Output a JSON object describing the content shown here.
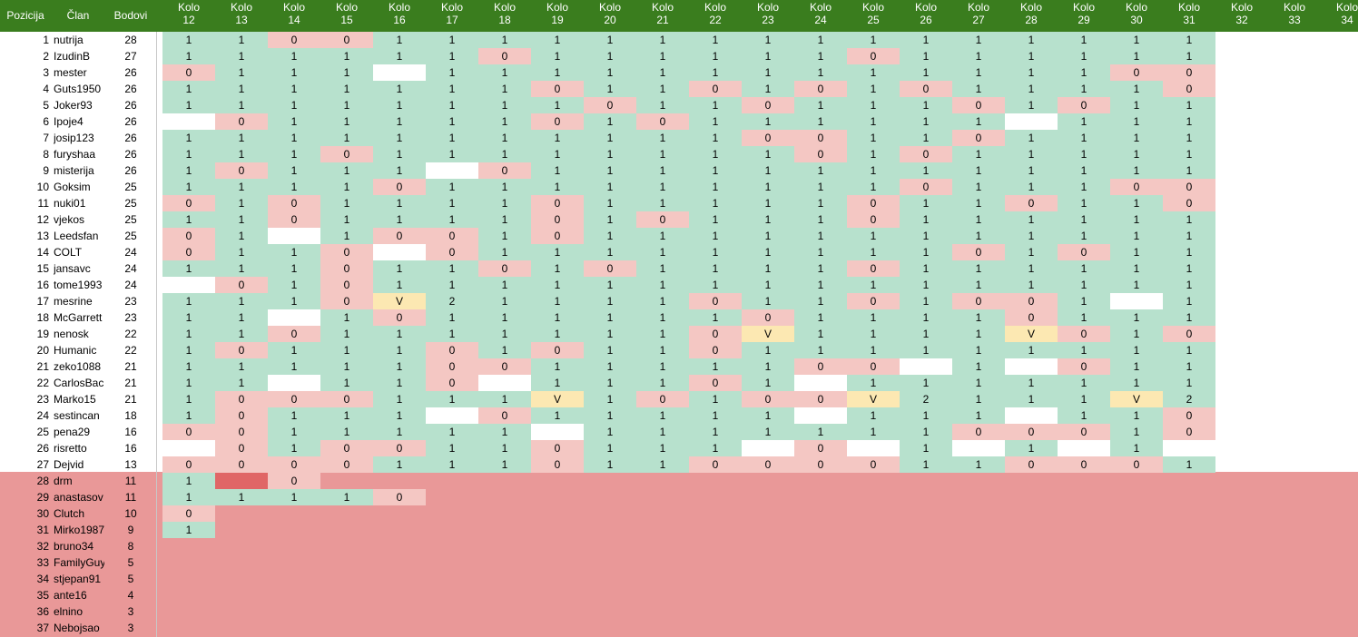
{
  "header": {
    "pozicija": "Pozicija",
    "clan": "Član",
    "bodovi": "Bodovi"
  },
  "rounds": [
    {
      "kolo": "Kolo",
      "num": "12"
    },
    {
      "kolo": "Kolo",
      "num": "13"
    },
    {
      "kolo": "Kolo",
      "num": "14"
    },
    {
      "kolo": "Kolo",
      "num": "15"
    },
    {
      "kolo": "Kolo",
      "num": "16"
    },
    {
      "kolo": "Kolo",
      "num": "17"
    },
    {
      "kolo": "Kolo",
      "num": "18"
    },
    {
      "kolo": "Kolo",
      "num": "19"
    },
    {
      "kolo": "Kolo",
      "num": "20"
    },
    {
      "kolo": "Kolo",
      "num": "21"
    },
    {
      "kolo": "Kolo",
      "num": "22"
    },
    {
      "kolo": "Kolo",
      "num": "23"
    },
    {
      "kolo": "Kolo",
      "num": "24"
    },
    {
      "kolo": "Kolo",
      "num": "25"
    },
    {
      "kolo": "Kolo",
      "num": "26"
    },
    {
      "kolo": "Kolo",
      "num": "27"
    },
    {
      "kolo": "Kolo",
      "num": "28"
    },
    {
      "kolo": "Kolo",
      "num": "29"
    },
    {
      "kolo": "Kolo",
      "num": "30"
    },
    {
      "kolo": "Kolo",
      "num": "31"
    },
    {
      "kolo": "Kolo",
      "num": "32"
    },
    {
      "kolo": "Kolo",
      "num": "33"
    },
    {
      "kolo": "Kolo",
      "num": "34"
    }
  ],
  "colors": {
    "header": "#3a7d1e",
    "ok": "#b7e1cd",
    "miss": "#f4c7c3",
    "vip": "#fce8b2",
    "relegation": "#e99898"
  },
  "rows": [
    {
      "pos": "1",
      "name": "nutrija",
      "pts": "28",
      "cells": [
        "1",
        "1",
        "0",
        "0",
        "1",
        "1",
        "1",
        "1",
        "1",
        "1",
        "1",
        "1",
        "1",
        "1",
        "1",
        "1",
        "1",
        "1",
        "1",
        "1"
      ]
    },
    {
      "pos": "2",
      "name": "IzudinB",
      "pts": "27",
      "cells": [
        "1",
        "1",
        "1",
        "1",
        "1",
        "1",
        "0",
        "1",
        "1",
        "1",
        "1",
        "1",
        "1",
        "0",
        "1",
        "1",
        "1",
        "1",
        "1",
        "1"
      ]
    },
    {
      "pos": "3",
      "name": "mester",
      "pts": "26",
      "cells": [
        "0",
        "1",
        "1",
        "1",
        "",
        "1",
        "1",
        "1",
        "1",
        "1",
        "1",
        "1",
        "1",
        "1",
        "1",
        "1",
        "1",
        "1",
        "0",
        "0"
      ]
    },
    {
      "pos": "4",
      "name": "Guts1950",
      "pts": "26",
      "cells": [
        "1",
        "1",
        "1",
        "1",
        "1",
        "1",
        "1",
        "0",
        "1",
        "1",
        "0",
        "1",
        "0",
        "1",
        "0",
        "1",
        "1",
        "1",
        "1",
        "0"
      ]
    },
    {
      "pos": "5",
      "name": "Joker93",
      "pts": "26",
      "cells": [
        "1",
        "1",
        "1",
        "1",
        "1",
        "1",
        "1",
        "1",
        "0",
        "1",
        "1",
        "0",
        "1",
        "1",
        "1",
        "0",
        "1",
        "0",
        "1",
        "1"
      ]
    },
    {
      "pos": "6",
      "name": "Ipoje4",
      "pts": "26",
      "cells": [
        "",
        "0",
        "1",
        "1",
        "1",
        "1",
        "1",
        "0",
        "1",
        "0",
        "1",
        "1",
        "1",
        "1",
        "1",
        "1",
        "",
        "1",
        "1",
        "1"
      ]
    },
    {
      "pos": "7",
      "name": "josip123",
      "pts": "26",
      "cells": [
        "1",
        "1",
        "1",
        "1",
        "1",
        "1",
        "1",
        "1",
        "1",
        "1",
        "1",
        "0",
        "0",
        "1",
        "1",
        "0",
        "1",
        "1",
        "1",
        "1"
      ]
    },
    {
      "pos": "8",
      "name": "furyshaa",
      "pts": "26",
      "cells": [
        "1",
        "1",
        "1",
        "0",
        "1",
        "1",
        "1",
        "1",
        "1",
        "1",
        "1",
        "1",
        "0",
        "1",
        "0",
        "1",
        "1",
        "1",
        "1",
        "1"
      ]
    },
    {
      "pos": "9",
      "name": "misterija",
      "pts": "26",
      "cells": [
        "1",
        "0",
        "1",
        "1",
        "1",
        "",
        "0",
        "1",
        "1",
        "1",
        "1",
        "1",
        "1",
        "1",
        "1",
        "1",
        "1",
        "1",
        "1",
        "1"
      ]
    },
    {
      "pos": "10",
      "name": "Goksim",
      "pts": "25",
      "cells": [
        "1",
        "1",
        "1",
        "1",
        "0",
        "1",
        "1",
        "1",
        "1",
        "1",
        "1",
        "1",
        "1",
        "1",
        "0",
        "1",
        "1",
        "1",
        "0",
        "0"
      ]
    },
    {
      "pos": "11",
      "name": "nuki01",
      "pts": "25",
      "cells": [
        "0",
        "1",
        "0",
        "1",
        "1",
        "1",
        "1",
        "0",
        "1",
        "1",
        "1",
        "1",
        "1",
        "0",
        "1",
        "1",
        "0",
        "1",
        "1",
        "0"
      ]
    },
    {
      "pos": "12",
      "name": "vjekos",
      "pts": "25",
      "cells": [
        "1",
        "1",
        "0",
        "1",
        "1",
        "1",
        "1",
        "0",
        "1",
        "0",
        "1",
        "1",
        "1",
        "0",
        "1",
        "1",
        "1",
        "1",
        "1",
        "1"
      ]
    },
    {
      "pos": "13",
      "name": "Leedsfan",
      "pts": "25",
      "cells": [
        "0",
        "1",
        "",
        "1",
        "0",
        "0",
        "1",
        "0",
        "1",
        "1",
        "1",
        "1",
        "1",
        "1",
        "1",
        "1",
        "1",
        "1",
        "1",
        "1"
      ]
    },
    {
      "pos": "14",
      "name": "COLT",
      "pts": "24",
      "cells": [
        "0",
        "1",
        "1",
        "0",
        "",
        "0",
        "1",
        "1",
        "1",
        "1",
        "1",
        "1",
        "1",
        "1",
        "1",
        "0",
        "1",
        "0",
        "1",
        "1"
      ]
    },
    {
      "pos": "15",
      "name": "jansavc",
      "pts": "24",
      "cells": [
        "1",
        "1",
        "1",
        "0",
        "1",
        "1",
        "0",
        "1",
        "0",
        "1",
        "1",
        "1",
        "1",
        "0",
        "1",
        "1",
        "1",
        "1",
        "1",
        "1"
      ]
    },
    {
      "pos": "16",
      "name": "tome1993",
      "pts": "24",
      "cells": [
        "",
        "0",
        "1",
        "0",
        "1",
        "1",
        "1",
        "1",
        "1",
        "1",
        "1",
        "1",
        "1",
        "1",
        "1",
        "1",
        "1",
        "1",
        "1",
        "1"
      ]
    },
    {
      "pos": "17",
      "name": "mesrine",
      "pts": "23",
      "cells": [
        "1",
        "1",
        "1",
        "0",
        "V",
        "2",
        "1",
        "1",
        "1",
        "1",
        "0",
        "1",
        "1",
        "0",
        "1",
        "0",
        "0",
        "1",
        "",
        "1"
      ]
    },
    {
      "pos": "18",
      "name": "McGarrett",
      "pts": "23",
      "cells": [
        "1",
        "1",
        "",
        "1",
        "0",
        "1",
        "1",
        "1",
        "1",
        "1",
        "1",
        "0",
        "1",
        "1",
        "1",
        "1",
        "0",
        "1",
        "1",
        "1"
      ]
    },
    {
      "pos": "19",
      "name": "nenosk",
      "pts": "22",
      "cells": [
        "1",
        "1",
        "0",
        "1",
        "1",
        "1",
        "1",
        "1",
        "1",
        "1",
        "0",
        "V",
        "1",
        "1",
        "1",
        "1",
        "V",
        "0",
        "1",
        "0"
      ]
    },
    {
      "pos": "20",
      "name": "Humanic",
      "pts": "22",
      "cells": [
        "1",
        "0",
        "1",
        "1",
        "1",
        "0",
        "1",
        "0",
        "1",
        "1",
        "0",
        "1",
        "1",
        "1",
        "1",
        "1",
        "1",
        "1",
        "1",
        "1"
      ]
    },
    {
      "pos": "21",
      "name": "zeko1088",
      "pts": "21",
      "cells": [
        "1",
        "1",
        "1",
        "1",
        "1",
        "0",
        "0",
        "1",
        "1",
        "1",
        "1",
        "1",
        "0",
        "0",
        "",
        "1",
        "",
        "0",
        "1",
        "1"
      ]
    },
    {
      "pos": "22",
      "name": "CarlosBac",
      "pts": "21",
      "cells": [
        "1",
        "1",
        "",
        "1",
        "1",
        "0",
        "",
        "1",
        "1",
        "1",
        "0",
        "1",
        "",
        "1",
        "1",
        "1",
        "1",
        "1",
        "1",
        "1"
      ]
    },
    {
      "pos": "23",
      "name": "Marko15",
      "pts": "21",
      "cells": [
        "1",
        "0",
        "0",
        "0",
        "1",
        "1",
        "1",
        "V",
        "1",
        "0",
        "1",
        "0",
        "0",
        "V",
        "2",
        "1",
        "1",
        "1",
        "V",
        "2"
      ]
    },
    {
      "pos": "24",
      "name": "sestincan",
      "pts": "18",
      "cells": [
        "1",
        "0",
        "1",
        "1",
        "1",
        "",
        "0",
        "1",
        "1",
        "1",
        "1",
        "1",
        "",
        "1",
        "1",
        "1",
        "",
        "1",
        "1",
        "0"
      ]
    },
    {
      "pos": "25",
      "name": "pena29",
      "pts": "16",
      "cells": [
        "0",
        "0",
        "1",
        "1",
        "1",
        "1",
        "1",
        "",
        "1",
        "1",
        "1",
        "1",
        "1",
        "1",
        "1",
        "0",
        "0",
        "0",
        "1",
        "0"
      ]
    },
    {
      "pos": "26",
      "name": "risretto",
      "pts": "16",
      "cells": [
        "",
        "0",
        "1",
        "0",
        "0",
        "1",
        "1",
        "0",
        "1",
        "1",
        "1",
        "",
        "0",
        "",
        "1",
        "",
        "1",
        "",
        "1",
        ""
      ]
    },
    {
      "pos": "27",
      "name": "Dejvid",
      "pts": "13",
      "cells": [
        "0",
        "0",
        "0",
        "0",
        "1",
        "1",
        "1",
        "0",
        "1",
        "1",
        "0",
        "0",
        "0",
        "0",
        "1",
        "1",
        "0",
        "0",
        "0",
        "1"
      ]
    },
    {
      "pos": "28",
      "name": "drm",
      "pts": "11",
      "cells": [
        "1",
        "",
        "0"
      ]
    },
    {
      "pos": "29",
      "name": "anastasov",
      "pts": "11",
      "cells": [
        "1",
        "1",
        "1",
        "1",
        "0"
      ]
    },
    {
      "pos": "30",
      "name": "Clutch",
      "pts": "10",
      "cells": [
        "0"
      ]
    },
    {
      "pos": "31",
      "name": "Mirko1987",
      "pts": "9",
      "cells": [
        "1"
      ]
    },
    {
      "pos": "32",
      "name": "bruno34",
      "pts": "8",
      "cells": []
    },
    {
      "pos": "33",
      "name": "FamilyGuy",
      "pts": "5",
      "cells": []
    },
    {
      "pos": "34",
      "name": "stjepan91",
      "pts": "5",
      "cells": []
    },
    {
      "pos": "35",
      "name": "ante16",
      "pts": "4",
      "cells": []
    },
    {
      "pos": "36",
      "name": "elnino",
      "pts": "3",
      "cells": []
    },
    {
      "pos": "37",
      "name": "Nebojsao",
      "pts": "3",
      "cells": []
    }
  ]
}
